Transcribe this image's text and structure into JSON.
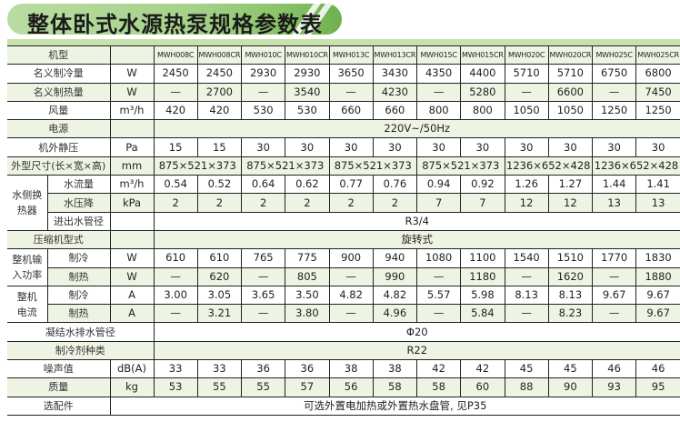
{
  "title": "整体卧式水源热泵规格参数表",
  "colors": {
    "accent": "#8cc46c",
    "row_shade": "#eef4e4",
    "band": "#c7e1ad"
  },
  "rows": [
    {
      "shade": true,
      "hdr": true,
      "cells": [
        {
          "t": "机型",
          "span": 2
        },
        {
          "t": ""
        },
        {
          "t": "MWH008C",
          "m": 1
        },
        {
          "t": "MWH008CR",
          "m": 1
        },
        {
          "t": "MWH010C",
          "m": 1
        },
        {
          "t": "MWH010CR",
          "m": 1
        },
        {
          "t": "MWH013C",
          "m": 1
        },
        {
          "t": "MWH013CR",
          "m": 1
        },
        {
          "t": "MWH015C",
          "m": 1
        },
        {
          "t": "MWH015CR",
          "m": 1
        },
        {
          "t": "MWH020C",
          "m": 1
        },
        {
          "t": "MWH020CR",
          "m": 1
        },
        {
          "t": "MWH025C",
          "m": 1
        },
        {
          "t": "MWH025CR",
          "m": 1
        }
      ]
    },
    {
      "cells": [
        {
          "t": "名义制冷量",
          "span": 2
        },
        {
          "t": "W"
        },
        {
          "t": "2450"
        },
        {
          "t": "2450"
        },
        {
          "t": "2930"
        },
        {
          "t": "2930"
        },
        {
          "t": "3650"
        },
        {
          "t": "3430"
        },
        {
          "t": "4350"
        },
        {
          "t": "4400"
        },
        {
          "t": "5710"
        },
        {
          "t": "5710"
        },
        {
          "t": "6750"
        },
        {
          "t": "6800"
        }
      ]
    },
    {
      "shade": true,
      "cells": [
        {
          "t": "名义制热量",
          "span": 2
        },
        {
          "t": "W"
        },
        {
          "t": "—"
        },
        {
          "t": "2700"
        },
        {
          "t": "—"
        },
        {
          "t": "3540"
        },
        {
          "t": "—"
        },
        {
          "t": "4230"
        },
        {
          "t": "—"
        },
        {
          "t": "5280"
        },
        {
          "t": "—"
        },
        {
          "t": "6600"
        },
        {
          "t": "—"
        },
        {
          "t": "7450"
        }
      ]
    },
    {
      "cells": [
        {
          "t": "风量",
          "span": 2
        },
        {
          "t": "m³/h"
        },
        {
          "t": "420"
        },
        {
          "t": "420"
        },
        {
          "t": "530"
        },
        {
          "t": "530"
        },
        {
          "t": "660"
        },
        {
          "t": "660"
        },
        {
          "t": "800"
        },
        {
          "t": "800"
        },
        {
          "t": "1050"
        },
        {
          "t": "1050"
        },
        {
          "t": "1250"
        },
        {
          "t": "1250"
        }
      ]
    },
    {
      "shade": true,
      "cells": [
        {
          "t": "电源",
          "span": 2
        },
        {
          "t": ""
        },
        {
          "t": "220V~/50Hz",
          "span": 12
        }
      ]
    },
    {
      "cells": [
        {
          "t": "机外静压",
          "span": 2
        },
        {
          "t": "Pa"
        },
        {
          "t": "15"
        },
        {
          "t": "15"
        },
        {
          "t": "30"
        },
        {
          "t": "30"
        },
        {
          "t": "30"
        },
        {
          "t": "30"
        },
        {
          "t": "30"
        },
        {
          "t": "30"
        },
        {
          "t": "30"
        },
        {
          "t": "30"
        },
        {
          "t": "30"
        },
        {
          "t": "30"
        }
      ]
    },
    {
      "shade": true,
      "cells": [
        {
          "t": "外型尺寸(长×宽×高)",
          "span": 2
        },
        {
          "t": "mm"
        },
        {
          "t": "875×521×373",
          "span": 2
        },
        {
          "t": "875×521×373",
          "span": 2
        },
        {
          "t": "875×521×373",
          "span": 2
        },
        {
          "t": "875×521×373",
          "span": 2
        },
        {
          "t": "1236×652×428",
          "span": 2
        },
        {
          "t": "1236×652×428",
          "span": 2
        }
      ]
    },
    {
      "cells": [
        {
          "t": "水侧换\n热器",
          "rows": 3
        },
        {
          "t": "水流量"
        },
        {
          "t": "m³/h"
        },
        {
          "t": "0.54"
        },
        {
          "t": "0.52"
        },
        {
          "t": "0.64"
        },
        {
          "t": "0.62"
        },
        {
          "t": "0.77"
        },
        {
          "t": "0.76"
        },
        {
          "t": "0.94"
        },
        {
          "t": "0.92"
        },
        {
          "t": "1.26"
        },
        {
          "t": "1.27"
        },
        {
          "t": "1.44"
        },
        {
          "t": "1.41"
        }
      ]
    },
    {
      "shade": true,
      "cells": [
        {
          "t": "水压降"
        },
        {
          "t": "kPa"
        },
        {
          "t": "2"
        },
        {
          "t": "2"
        },
        {
          "t": "2"
        },
        {
          "t": "2"
        },
        {
          "t": "2"
        },
        {
          "t": "2"
        },
        {
          "t": "7"
        },
        {
          "t": "7"
        },
        {
          "t": "12"
        },
        {
          "t": "12"
        },
        {
          "t": "13"
        },
        {
          "t": "13"
        }
      ]
    },
    {
      "cells": [
        {
          "t": "进出水管径"
        },
        {
          "t": ""
        },
        {
          "t": "R3/4",
          "span": 12
        }
      ]
    },
    {
      "shade": true,
      "cells": [
        {
          "t": "压缩机型式",
          "span": 2
        },
        {
          "t": ""
        },
        {
          "t": "旋转式",
          "span": 12
        }
      ]
    },
    {
      "cells": [
        {
          "t": "整机输\n入功率",
          "rows": 2
        },
        {
          "t": "制冷"
        },
        {
          "t": "W"
        },
        {
          "t": "610"
        },
        {
          "t": "610"
        },
        {
          "t": "765"
        },
        {
          "t": "775"
        },
        {
          "t": "900"
        },
        {
          "t": "940"
        },
        {
          "t": "1080"
        },
        {
          "t": "1100"
        },
        {
          "t": "1540"
        },
        {
          "t": "1510"
        },
        {
          "t": "1770"
        },
        {
          "t": "1830"
        }
      ]
    },
    {
      "shade": true,
      "cells": [
        {
          "t": "制热"
        },
        {
          "t": "W"
        },
        {
          "t": "—"
        },
        {
          "t": "620"
        },
        {
          "t": "—"
        },
        {
          "t": "805"
        },
        {
          "t": "—"
        },
        {
          "t": "990"
        },
        {
          "t": "—"
        },
        {
          "t": "1180"
        },
        {
          "t": "—"
        },
        {
          "t": "1620"
        },
        {
          "t": "—"
        },
        {
          "t": "1880"
        }
      ]
    },
    {
      "cells": [
        {
          "t": "整机\n电流",
          "rows": 2
        },
        {
          "t": "制冷"
        },
        {
          "t": "A"
        },
        {
          "t": "3.00"
        },
        {
          "t": "3.05"
        },
        {
          "t": "3.65"
        },
        {
          "t": "3.50"
        },
        {
          "t": "4.82"
        },
        {
          "t": "4.82"
        },
        {
          "t": "5.57"
        },
        {
          "t": "5.98"
        },
        {
          "t": "8.13"
        },
        {
          "t": "8.13"
        },
        {
          "t": "9.67"
        },
        {
          "t": "9.67"
        }
      ]
    },
    {
      "shade": true,
      "cells": [
        {
          "t": "制热"
        },
        {
          "t": "A"
        },
        {
          "t": "—"
        },
        {
          "t": "3.21"
        },
        {
          "t": "—"
        },
        {
          "t": "3.80"
        },
        {
          "t": "—"
        },
        {
          "t": "4.96"
        },
        {
          "t": "—"
        },
        {
          "t": "5.84"
        },
        {
          "t": "—"
        },
        {
          "t": "8.23"
        },
        {
          "t": "—"
        },
        {
          "t": "9.67"
        }
      ]
    },
    {
      "cells": [
        {
          "t": "凝结水排水管径",
          "span": 3
        },
        {
          "t": "Φ20",
          "span": 12
        }
      ]
    },
    {
      "shade": true,
      "cells": [
        {
          "t": "制冷剂种类",
          "span": 3
        },
        {
          "t": "R22",
          "span": 12
        }
      ]
    },
    {
      "cells": [
        {
          "t": "噪声值",
          "span": 2
        },
        {
          "t": "dB(A)"
        },
        {
          "t": "33"
        },
        {
          "t": "33"
        },
        {
          "t": "36"
        },
        {
          "t": "36"
        },
        {
          "t": "38"
        },
        {
          "t": "38"
        },
        {
          "t": "42"
        },
        {
          "t": "42"
        },
        {
          "t": "45"
        },
        {
          "t": "45"
        },
        {
          "t": "46"
        },
        {
          "t": "46"
        }
      ]
    },
    {
      "shade": true,
      "cells": [
        {
          "t": "质量",
          "span": 2
        },
        {
          "t": "kg"
        },
        {
          "t": "53"
        },
        {
          "t": "55"
        },
        {
          "t": "55"
        },
        {
          "t": "57"
        },
        {
          "t": "56"
        },
        {
          "t": "58"
        },
        {
          "t": "58"
        },
        {
          "t": "60"
        },
        {
          "t": "88"
        },
        {
          "t": "90"
        },
        {
          "t": "93"
        },
        {
          "t": "95"
        }
      ]
    },
    {
      "cells": [
        {
          "t": "选配件",
          "span": 2
        },
        {
          "t": "可选外置电加热或外置热水盘管, 见P35",
          "span": 13
        }
      ]
    }
  ]
}
